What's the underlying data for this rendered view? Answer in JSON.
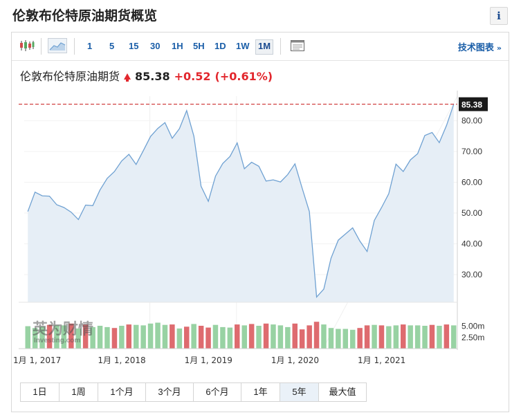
{
  "page": {
    "title": "伦敦布伦特原油期货概览",
    "info_label": "i"
  },
  "toolbar": {
    "intervals": [
      "1",
      "5",
      "15",
      "30",
      "1H",
      "5H",
      "1D",
      "1W",
      "1M"
    ],
    "active_interval": "1M",
    "tech_chart_label": "技术图表",
    "tech_chart_arrow": "»"
  },
  "quote": {
    "name": "伦敦布伦特原油期货",
    "price": "85.38",
    "change": "+0.52",
    "change_pct": "(+0.61%)"
  },
  "watermark": {
    "cn": "英为财情",
    "en": "Investing.com"
  },
  "ranges": [
    "1日",
    "1周",
    "1个月",
    "3个月",
    "6个月",
    "1年",
    "5年",
    "最大值"
  ],
  "active_range": "5年",
  "colors": {
    "line": "#6fa1d2",
    "area": "#e6eef6",
    "up": "#98d2a3",
    "down": "#de6b6f",
    "ref": "#d04040",
    "price_tag": "#1a1a1a"
  },
  "chart_data": {
    "type": "area",
    "price_label": "85.38",
    "y_ticks": [
      "80.00",
      "70.00",
      "60.00",
      "50.00",
      "40.00",
      "30.00"
    ],
    "ylim": [
      21,
      88
    ],
    "volume_ticks": [
      "5.00m",
      "2.50m"
    ],
    "volume_lim": [
      0,
      8.5
    ],
    "x_tick_labels": [
      "1月 1, 2017",
      "1月 1, 2018",
      "1月 1, 2019",
      "1月 1, 2020",
      "1月 1, 2021"
    ],
    "series": [
      {
        "values": [
          50.5,
          56.8,
          55.6,
          55.5,
          52.7,
          51.8,
          50.3,
          47.9,
          52.6,
          52.4,
          57.5,
          61.3,
          63.5,
          66.9,
          69.1,
          65.8,
          70.3,
          74.9,
          77.5,
          79.4,
          74.3,
          77.4,
          83.3,
          75.0,
          58.7,
          53.8,
          62.0,
          66.1,
          68.4,
          72.8,
          64.4,
          66.5,
          65.2,
          60.4,
          60.8,
          60.1,
          62.5,
          66.0,
          58.1,
          50.5,
          22.7,
          25.3,
          35.3,
          41.2,
          43.2,
          45.2,
          40.9,
          37.5,
          47.6,
          51.8,
          56.3,
          65.9,
          63.5,
          67.3,
          69.3,
          75.2,
          76.2,
          72.9,
          78.5,
          85.38
        ]
      }
    ],
    "volume": [
      {
        "v": 5.0,
        "up": true
      },
      {
        "v": 4.6,
        "up": true
      },
      {
        "v": 4.9,
        "up": true
      },
      {
        "v": 5.3,
        "up": false
      },
      {
        "v": 5.2,
        "up": true
      },
      {
        "v": 5.2,
        "up": true
      },
      {
        "v": 5.6,
        "up": false
      },
      {
        "v": 4.5,
        "up": true
      },
      {
        "v": 5.4,
        "up": false
      },
      {
        "v": 4.8,
        "up": true
      },
      {
        "v": 5.1,
        "up": true
      },
      {
        "v": 4.8,
        "up": true
      },
      {
        "v": 4.6,
        "up": false
      },
      {
        "v": 5.1,
        "up": true
      },
      {
        "v": 5.4,
        "up": false
      },
      {
        "v": 5.3,
        "up": true
      },
      {
        "v": 5.2,
        "up": true
      },
      {
        "v": 5.6,
        "up": true
      },
      {
        "v": 5.8,
        "up": true
      },
      {
        "v": 5.3,
        "up": true
      },
      {
        "v": 5.4,
        "up": false
      },
      {
        "v": 4.5,
        "up": true
      },
      {
        "v": 4.9,
        "up": false
      },
      {
        "v": 5.5,
        "up": true
      },
      {
        "v": 5.1,
        "up": false
      },
      {
        "v": 4.7,
        "up": false
      },
      {
        "v": 5.3,
        "up": true
      },
      {
        "v": 4.8,
        "up": true
      },
      {
        "v": 4.7,
        "up": true
      },
      {
        "v": 5.4,
        "up": false
      },
      {
        "v": 5.2,
        "up": true
      },
      {
        "v": 5.5,
        "up": false
      },
      {
        "v": 5.1,
        "up": true
      },
      {
        "v": 5.6,
        "up": false
      },
      {
        "v": 5.4,
        "up": true
      },
      {
        "v": 5.2,
        "up": true
      },
      {
        "v": 4.8,
        "up": true
      },
      {
        "v": 5.6,
        "up": false
      },
      {
        "v": 4.3,
        "up": false
      },
      {
        "v": 5.2,
        "up": false
      },
      {
        "v": 6.0,
        "up": false
      },
      {
        "v": 5.4,
        "up": true
      },
      {
        "v": 4.6,
        "up": true
      },
      {
        "v": 4.4,
        "up": true
      },
      {
        "v": 4.4,
        "up": true
      },
      {
        "v": 4.2,
        "up": true
      },
      {
        "v": 4.6,
        "up": false
      },
      {
        "v": 5.2,
        "up": false
      },
      {
        "v": 5.3,
        "up": true
      },
      {
        "v": 5.2,
        "up": false
      },
      {
        "v": 5.0,
        "up": true
      },
      {
        "v": 5.2,
        "up": true
      },
      {
        "v": 5.4,
        "up": false
      },
      {
        "v": 5.2,
        "up": true
      },
      {
        "v": 5.2,
        "up": true
      },
      {
        "v": 5.1,
        "up": true
      },
      {
        "v": 5.3,
        "up": false
      },
      {
        "v": 5.1,
        "up": true
      },
      {
        "v": 5.4,
        "up": false
      },
      {
        "v": 5.2,
        "up": true
      }
    ]
  }
}
